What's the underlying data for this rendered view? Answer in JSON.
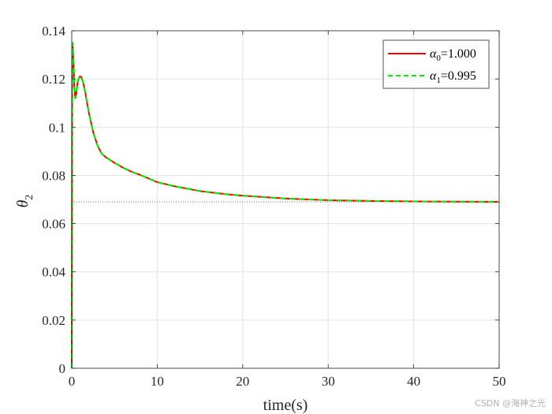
{
  "chart_data": {
    "type": "line",
    "xlabel": "time(s)",
    "ylabel_symbol": "θ",
    "ylabel_subscript": "2",
    "xlim": [
      0,
      50
    ],
    "ylim": [
      0,
      0.14
    ],
    "xticks": [
      "0",
      "10",
      "20",
      "30",
      "40",
      "50"
    ],
    "yticks": [
      "0",
      "0.02",
      "0.04",
      "0.06",
      "0.08",
      "0.1",
      "0.12",
      "0.14"
    ],
    "grid": true,
    "legend_position": "top-right",
    "reference_line": {
      "y": 0.069,
      "style": "dotted",
      "color": "#555555"
    },
    "series": [
      {
        "legend_symbol": "α",
        "legend_subscript": "0",
        "legend_value": "=1.000",
        "color": "#ff0000",
        "dash": "solid",
        "x": [
          0,
          0.05,
          0.1,
          0.2,
          0.3,
          0.4,
          0.5,
          0.7,
          0.9,
          1.1,
          1.3,
          1.6,
          2,
          2.5,
          3,
          3.5,
          4,
          5,
          6,
          7,
          8,
          10,
          12,
          15,
          18,
          20,
          25,
          30,
          35,
          40,
          45,
          50
        ],
        "y": [
          0,
          0.125,
          0.134,
          0.128,
          0.117,
          0.112,
          0.113,
          0.119,
          0.121,
          0.121,
          0.119,
          0.114,
          0.106,
          0.098,
          0.0925,
          0.089,
          0.0875,
          0.0852,
          0.0832,
          0.0815,
          0.0802,
          0.0772,
          0.0755,
          0.0735,
          0.0722,
          0.0716,
          0.0704,
          0.0697,
          0.0694,
          0.0692,
          0.0691,
          0.069
        ]
      },
      {
        "legend_symbol": "α",
        "legend_subscript": "1",
        "legend_value": "=0.995",
        "color": "#00ee00",
        "dash": "dashed",
        "x": [
          0,
          0.05,
          0.1,
          0.2,
          0.3,
          0.4,
          0.5,
          0.7,
          0.9,
          1.1,
          1.3,
          1.6,
          2,
          2.5,
          3,
          3.5,
          4,
          5,
          6,
          7,
          8,
          10,
          12,
          15,
          18,
          20,
          25,
          30,
          35,
          40,
          45,
          50
        ],
        "y": [
          0,
          0.126,
          0.135,
          0.128,
          0.117,
          0.112,
          0.113,
          0.119,
          0.121,
          0.121,
          0.119,
          0.114,
          0.106,
          0.098,
          0.0925,
          0.089,
          0.0875,
          0.0852,
          0.0832,
          0.0815,
          0.0802,
          0.0772,
          0.0755,
          0.0735,
          0.0722,
          0.0716,
          0.0704,
          0.0697,
          0.0694,
          0.0692,
          0.0691,
          0.069
        ]
      }
    ]
  },
  "watermark": "CSDN @海神之光"
}
